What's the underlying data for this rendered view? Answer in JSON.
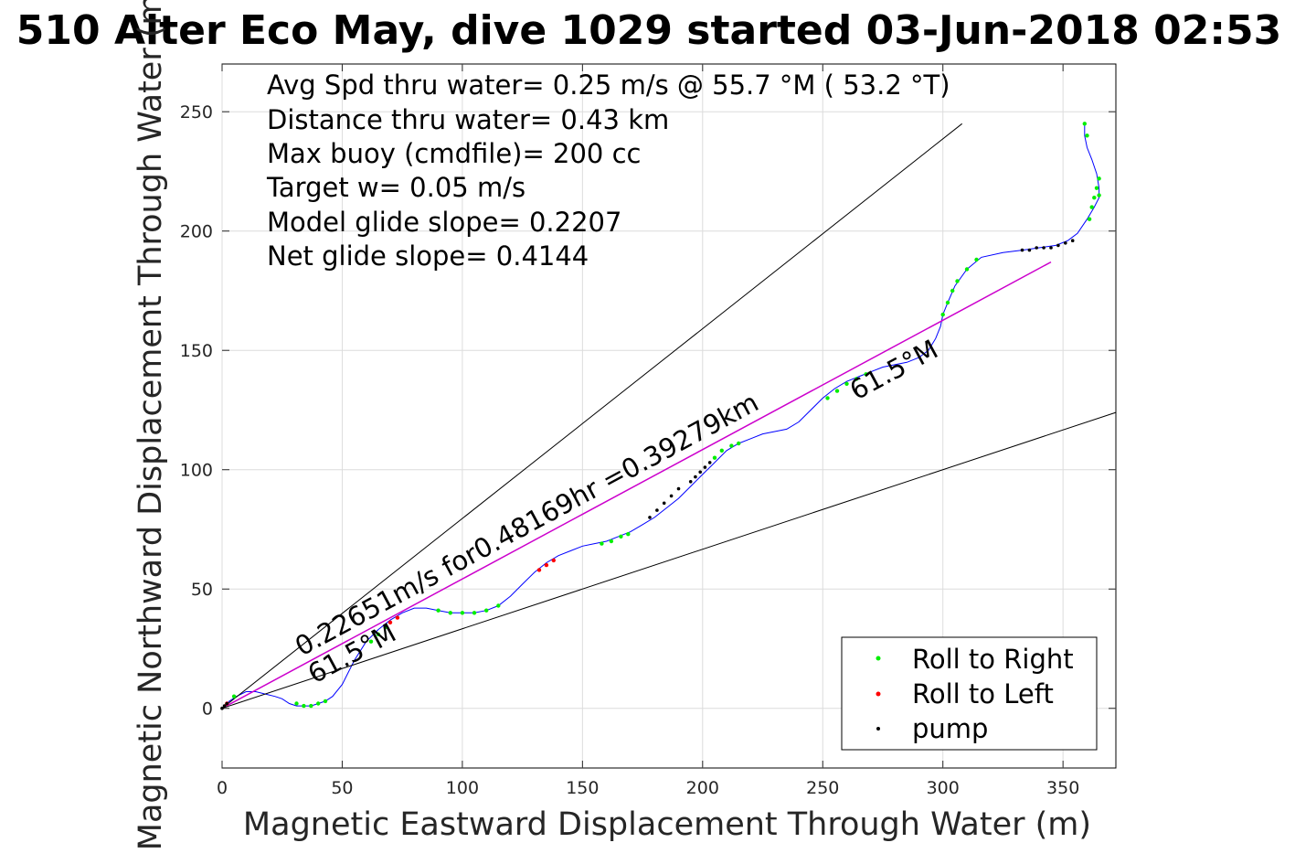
{
  "chart_data": {
    "type": "line",
    "title": "510 Alter Eco May, dive 1029 started 03-Jun-2018 02:53",
    "xlabel": "Magnetic Eastward Displacement Through Water (m)",
    "ylabel": "Magnetic Northward Displacement Through Water (m)",
    "xlim": [
      0,
      372
    ],
    "ylim": [
      -25,
      270
    ],
    "xticks": [
      0,
      50,
      100,
      150,
      200,
      250,
      300,
      350
    ],
    "yticks": [
      0,
      50,
      100,
      150,
      200,
      250
    ],
    "grid": true,
    "legend_position": "bottom-right",
    "annotations": [
      "Avg Spd thru water=  0.25 m/s @  55.7 °M ( 53.2 °T)",
      "Distance thru water=  0.43 km",
      "Max buoy (cmdfile)= 200 cc",
      "Target w= 0.05 m/s",
      "Model glide slope= 0.2207",
      "Net glide slope= 0.4144"
    ],
    "line_labels": {
      "speed": "0.22651m/s for0.48169hr =0.39279km",
      "heading_start": "61.5°M",
      "heading_end": "61.5°M"
    },
    "colors": {
      "track": "#0000ff",
      "net_line": "#cc00cc",
      "cone": "#000000",
      "roll_right": "#00ee00",
      "roll_left": "#ff0000",
      "pump": "#000000"
    },
    "series": [
      {
        "name": "track",
        "kind": "line",
        "x": [
          0,
          3,
          6,
          10,
          14,
          18,
          22,
          25,
          28,
          31,
          34,
          37,
          40,
          43,
          46,
          50,
          55,
          60,
          65,
          70,
          75,
          80,
          85,
          90,
          95,
          100,
          105,
          110,
          115,
          120,
          125,
          130,
          135,
          140,
          145,
          150,
          155,
          160,
          165,
          170,
          175,
          180,
          185,
          190,
          195,
          200,
          205,
          210,
          215,
          220,
          225,
          230,
          235,
          240,
          245,
          250,
          255,
          260,
          265,
          270,
          275,
          280,
          285,
          290,
          294,
          297,
          299,
          300,
          302,
          305,
          310,
          316,
          325,
          333,
          340,
          347,
          352,
          356,
          360,
          363,
          365,
          365,
          364,
          362,
          360,
          359,
          359
        ],
        "y": [
          0,
          3,
          5,
          7,
          7,
          6,
          5,
          4,
          2,
          1,
          1,
          1,
          2,
          3,
          5,
          10,
          20,
          28,
          33,
          37,
          40,
          42,
          42,
          41,
          40,
          40,
          40,
          41,
          43,
          47,
          52,
          57,
          61,
          64,
          66,
          68,
          69,
          70,
          72,
          74,
          77,
          80,
          84,
          88,
          93,
          98,
          103,
          108,
          111,
          113,
          115,
          116,
          117,
          120,
          125,
          130,
          134,
          137,
          139,
          141,
          143,
          144,
          145,
          147,
          150,
          155,
          160,
          165,
          170,
          177,
          184,
          189,
          191,
          192,
          193,
          194,
          196,
          199,
          205,
          210,
          214,
          218,
          224,
          230,
          235,
          240,
          245
        ]
      },
      {
        "name": "net",
        "kind": "line",
        "x": [
          0,
          345
        ],
        "y": [
          0,
          187
        ]
      },
      {
        "name": "cone-upper",
        "kind": "line",
        "x": [
          0,
          308
        ],
        "y": [
          0,
          245
        ]
      },
      {
        "name": "cone-lower",
        "kind": "line",
        "x": [
          0,
          372
        ],
        "y": [
          0,
          124
        ]
      },
      {
        "name": "Roll to Right",
        "kind": "scatter",
        "x": [
          5,
          31,
          34,
          37,
          40,
          43,
          62,
          65,
          68,
          90,
          95,
          100,
          105,
          110,
          115,
          158,
          162,
          166,
          169,
          205,
          208,
          212,
          215,
          252,
          256,
          260,
          264,
          268,
          300,
          302,
          304,
          306,
          310,
          314,
          361,
          362,
          363,
          364,
          365,
          365,
          360,
          359
        ],
        "y": [
          5,
          2,
          1,
          1,
          2,
          3,
          28,
          31,
          34,
          41,
          40,
          40,
          40,
          41,
          43,
          69,
          70,
          72,
          73,
          105,
          108,
          110,
          111,
          130,
          133,
          136,
          138,
          140,
          165,
          170,
          175,
          179,
          184,
          188,
          205,
          210,
          214,
          218,
          222,
          215,
          240,
          245
        ]
      },
      {
        "name": "Roll to Left",
        "kind": "scatter",
        "x": [
          2,
          70,
          73,
          132,
          135,
          138
        ],
        "y": [
          2,
          36,
          38,
          58,
          60,
          62
        ],
        "type": "x"
      },
      {
        "name": "pump",
        "kind": "scatter",
        "x": [
          0,
          1,
          2,
          178,
          181,
          184,
          187,
          190,
          195,
          197,
          199,
          201,
          203,
          333,
          336,
          339,
          342,
          345,
          348,
          351,
          354
        ],
        "y": [
          0,
          1,
          2,
          80,
          83,
          86,
          89,
          92,
          95,
          97,
          99,
          101,
          103,
          192,
          192,
          193,
          193,
          193,
          194,
          195,
          196
        ]
      }
    ],
    "legend": [
      "Roll to Right",
      "Roll to Left",
      "pump"
    ]
  }
}
